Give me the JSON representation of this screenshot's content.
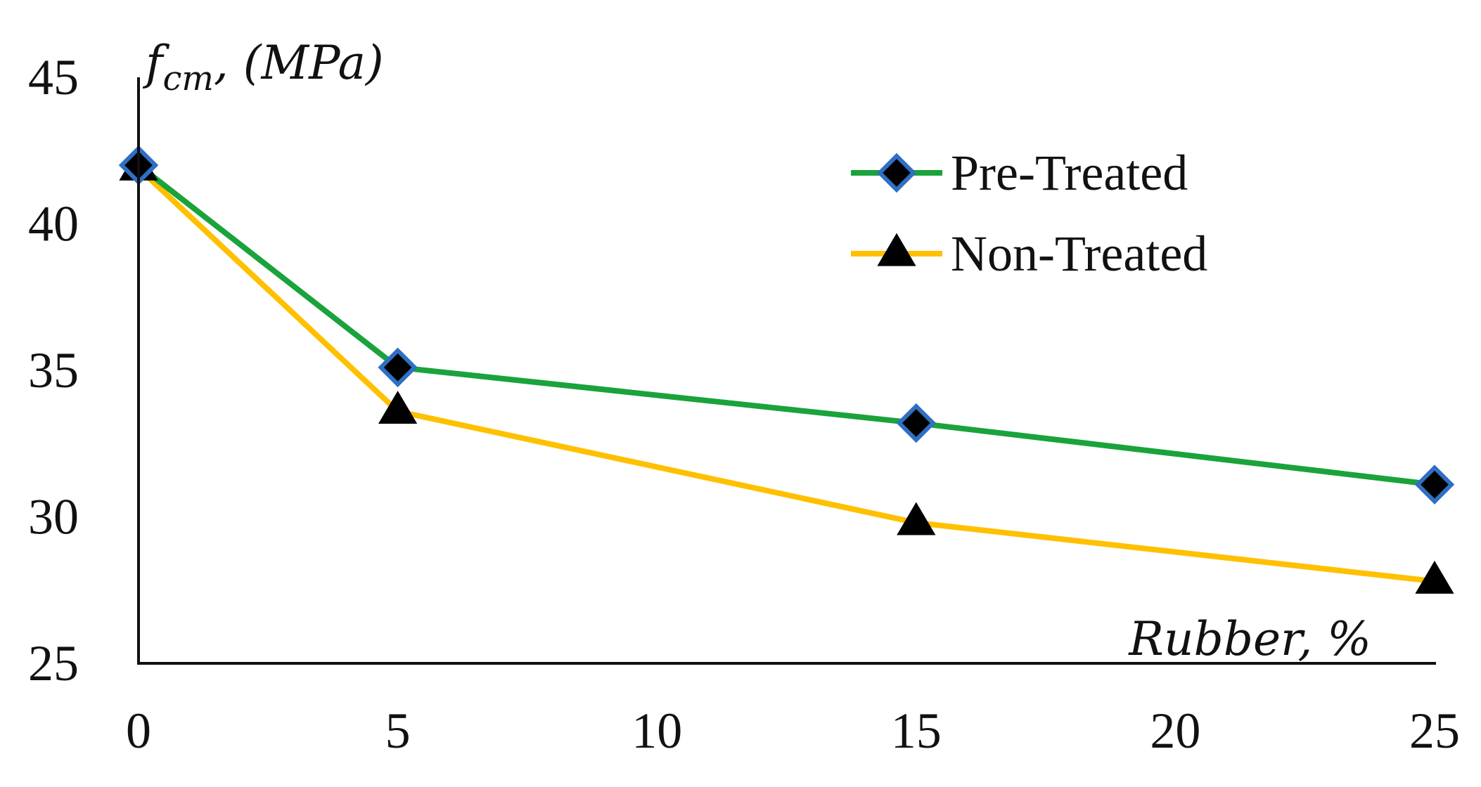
{
  "chart_data": {
    "type": "line",
    "title": "",
    "xlabel": "Rubber, %",
    "ylabel": {
      "symbol": "f",
      "subscript": "cm",
      "unit": ", (MPa)"
    },
    "x": [
      0,
      5,
      15,
      25
    ],
    "x_ticks": [
      "0",
      "5",
      "10",
      "15",
      "20",
      "25"
    ],
    "y_ticks": [
      "25",
      "30",
      "35",
      "40",
      "45"
    ],
    "xlim": [
      0,
      25
    ],
    "ylim": [
      25,
      45
    ],
    "grid": false,
    "legend_position": "top-right",
    "series": [
      {
        "name": "Pre-Treated",
        "values": [
          42.0,
          35.1,
          33.2,
          31.1
        ],
        "color": "#1aa33b",
        "marker": "diamond",
        "marker_fill": "#000000",
        "marker_edge": "#2f6fc4"
      },
      {
        "name": "Non-Treated",
        "values": [
          41.9,
          33.6,
          29.8,
          27.8
        ],
        "color": "#ffc000",
        "marker": "triangle",
        "marker_fill": "#000000",
        "marker_edge": "#000000"
      }
    ]
  }
}
